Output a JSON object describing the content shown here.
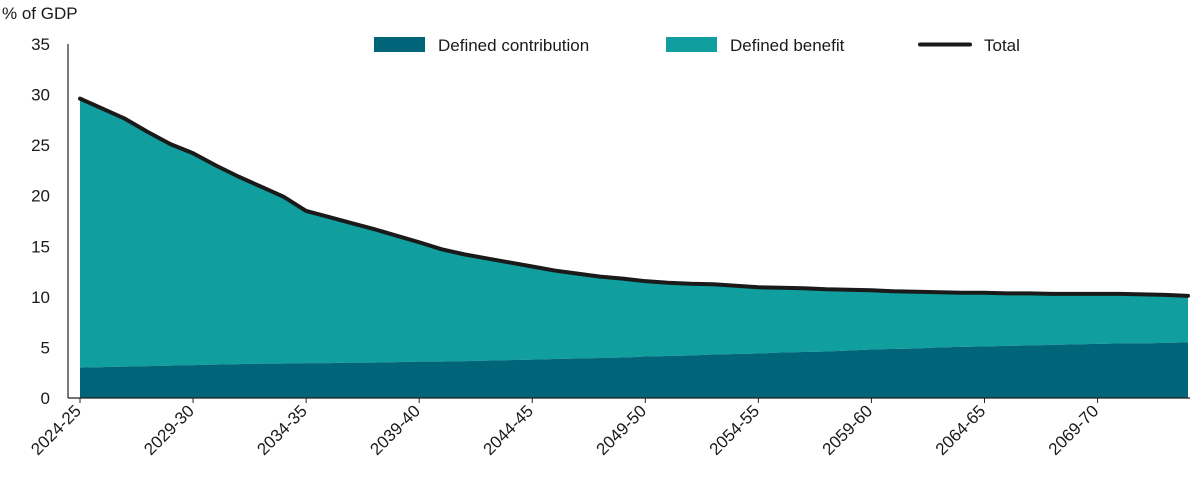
{
  "chart_data": {
    "type": "area",
    "unit_label": "% of GDP",
    "ylim": [
      0,
      35
    ],
    "y_ticks": [
      "0",
      "5",
      "10",
      "15",
      "20",
      "25",
      "30",
      "35"
    ],
    "x_tick_labels": [
      "2024-25",
      "2029-30",
      "2034-35",
      "2039-40",
      "2044-45",
      "2049-50",
      "2054-55",
      "2059-60",
      "2064-65",
      "2069-70"
    ],
    "x_tick_positions": [
      0,
      5,
      10,
      15,
      20,
      25,
      30,
      35,
      40,
      45
    ],
    "grid": false,
    "legend": {
      "position": "top",
      "items": [
        {
          "label": "Defined contribution",
          "kind": "swatch",
          "series": 0
        },
        {
          "label": "Defined benefit",
          "kind": "swatch",
          "series": 1
        },
        {
          "label": "Total",
          "kind": "line",
          "series": 2
        }
      ]
    },
    "x": [
      "2024-25",
      "2025-26",
      "2026-27",
      "2027-28",
      "2028-29",
      "2029-30",
      "2030-31",
      "2031-32",
      "2032-33",
      "2033-34",
      "2034-35",
      "2035-36",
      "2036-37",
      "2037-38",
      "2038-39",
      "2039-40",
      "2040-41",
      "2041-42",
      "2042-43",
      "2043-44",
      "2044-45",
      "2045-46",
      "2046-47",
      "2047-48",
      "2048-49",
      "2049-50",
      "2050-51",
      "2051-52",
      "2052-53",
      "2053-54",
      "2054-55",
      "2055-56",
      "2056-57",
      "2057-58",
      "2058-59",
      "2059-60",
      "2060-61",
      "2061-62",
      "2062-63",
      "2063-64",
      "2064-65",
      "2065-66",
      "2066-67",
      "2067-68",
      "2068-69",
      "2069-70",
      "2070-71",
      "2071-72",
      "2072-73",
      "2073-74"
    ],
    "series": [
      {
        "name": "Defined contribution",
        "color": "#006579",
        "values": [
          3.0,
          3.05,
          3.1,
          3.15,
          3.2,
          3.25,
          3.3,
          3.35,
          3.4,
          3.4,
          3.45,
          3.45,
          3.5,
          3.5,
          3.55,
          3.6,
          3.6,
          3.65,
          3.7,
          3.75,
          3.8,
          3.85,
          3.9,
          3.95,
          4.0,
          4.1,
          4.15,
          4.2,
          4.3,
          4.35,
          4.4,
          4.5,
          4.55,
          4.6,
          4.7,
          4.8,
          4.85,
          4.9,
          5.0,
          5.05,
          5.1,
          5.15,
          5.2,
          5.25,
          5.3,
          5.35,
          5.4,
          5.4,
          5.45,
          5.5
        ]
      },
      {
        "name": "Defined benefit",
        "color": "#109e9e",
        "values": [
          26.6,
          25.55,
          24.5,
          23.15,
          21.9,
          20.95,
          19.7,
          18.55,
          17.5,
          16.5,
          15.05,
          14.45,
          13.8,
          13.2,
          12.5,
          11.8,
          11.1,
          10.55,
          10.1,
          9.65,
          9.2,
          8.75,
          8.4,
          8.05,
          7.8,
          7.45,
          7.25,
          7.1,
          6.95,
          6.75,
          6.55,
          6.4,
          6.3,
          6.15,
          6.0,
          5.85,
          5.7,
          5.6,
          5.45,
          5.35,
          5.3,
          5.2,
          5.15,
          5.05,
          5.0,
          4.95,
          4.9,
          4.85,
          4.75,
          4.6
        ]
      },
      {
        "name": "Total",
        "color": "#1a1a1a",
        "values": [
          29.6,
          28.6,
          27.6,
          26.3,
          25.1,
          24.2,
          23.0,
          21.9,
          20.9,
          19.9,
          18.5,
          17.9,
          17.3,
          16.7,
          16.05,
          15.4,
          14.7,
          14.2,
          13.8,
          13.4,
          13.0,
          12.6,
          12.3,
          12.0,
          11.8,
          11.55,
          11.4,
          11.3,
          11.25,
          11.1,
          10.95,
          10.9,
          10.85,
          10.75,
          10.7,
          10.65,
          10.55,
          10.5,
          10.45,
          10.4,
          10.4,
          10.35,
          10.35,
          10.3,
          10.3,
          10.3,
          10.3,
          10.25,
          10.2,
          10.1
        ]
      }
    ]
  }
}
